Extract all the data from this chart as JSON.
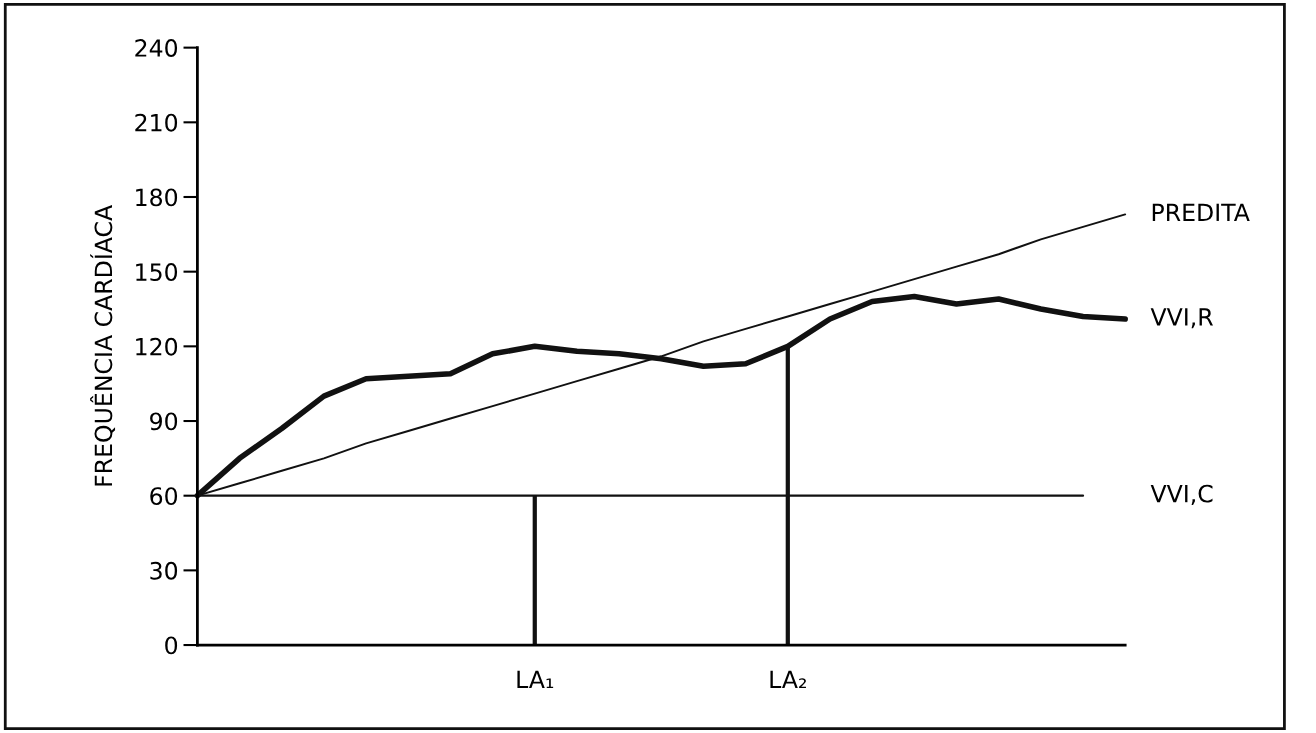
{
  "chart_data": {
    "type": "line",
    "ylabel": "FREQUÊNCIA CARDÍACA",
    "categories": [
      null,
      null,
      null,
      null,
      null,
      null,
      null,
      null,
      "LA₁",
      null,
      null,
      null,
      null,
      null,
      "LA₂",
      null,
      null,
      null,
      null,
      null,
      null,
      null,
      null
    ],
    "series": [
      {
        "name": "PREDITA",
        "color": "#111111",
        "values": [
          60,
          65,
          70,
          75,
          81,
          86,
          91,
          96,
          101,
          106,
          111,
          116,
          122,
          127,
          132,
          137,
          142,
          147,
          152,
          157,
          163,
          168,
          173
        ]
      },
      {
        "name": "VVI,R",
        "color": "#111111",
        "values": [
          60,
          75,
          87,
          100,
          107,
          108,
          109,
          117,
          120,
          118,
          117,
          115,
          112,
          113,
          120,
          131,
          138,
          140,
          137,
          139,
          135,
          132,
          131
        ]
      },
      {
        "name": "VVI,C",
        "color": "#111111",
        "values": [
          60,
          60,
          60,
          60,
          60,
          60,
          60,
          60,
          60,
          60,
          60,
          60,
          60,
          60,
          60,
          60,
          60,
          60,
          60,
          60,
          60,
          60,
          null
        ]
      },
      {
        "type": "bar",
        "color": "#111111",
        "values": [
          null,
          null,
          null,
          null,
          null,
          null,
          null,
          null,
          60,
          null,
          null,
          null,
          null,
          null,
          120,
          null,
          null,
          null,
          null,
          null,
          null,
          null,
          null
        ]
      }
    ],
    "ylim": [
      0,
      240
    ],
    "yticks": [
      0,
      30,
      60,
      90,
      120,
      150,
      180,
      210,
      240
    ],
    "grid": false,
    "legend": false,
    "marker": "none",
    "line_style": "solid"
  }
}
